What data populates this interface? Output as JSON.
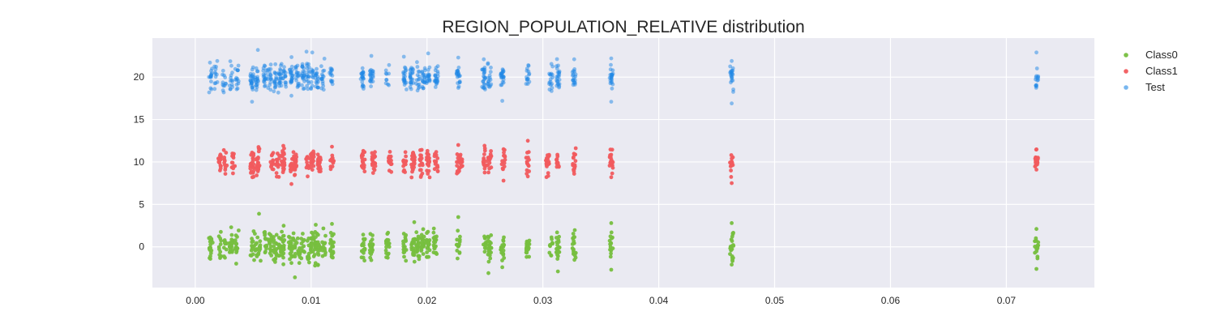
{
  "chart_data": {
    "type": "scatter",
    "title": "REGION_POPULATION_RELATIVE distribution",
    "xlabel": "",
    "ylabel": "",
    "xlim": [
      -0.0037,
      0.0776
    ],
    "ylim": [
      -4.8,
      24.6
    ],
    "x_ticks": [
      {
        "value": 0.0,
        "label": "0.00"
      },
      {
        "value": 0.01,
        "label": "0.01"
      },
      {
        "value": 0.02,
        "label": "0.02"
      },
      {
        "value": 0.03,
        "label": "0.03"
      },
      {
        "value": 0.04,
        "label": "0.04"
      },
      {
        "value": 0.05,
        "label": "0.05"
      },
      {
        "value": 0.06,
        "label": "0.06"
      },
      {
        "value": 0.07,
        "label": "0.07"
      }
    ],
    "y_ticks": [
      {
        "value": 0,
        "label": "0"
      },
      {
        "value": 5,
        "label": "5"
      },
      {
        "value": 10,
        "label": "10"
      },
      {
        "value": 15,
        "label": "15"
      },
      {
        "value": 20,
        "label": "20"
      }
    ],
    "grid": true,
    "legend_position": "outside-top-right",
    "background_color": "#eaeaf2",
    "series": [
      {
        "name": "Class0",
        "color": "#77bf3f",
        "opacity": 0.95,
        "y_center": 0,
        "y_spread": 1.2,
        "x_columns": [
          0.0013,
          0.0021,
          0.0026,
          0.0031,
          0.0036,
          0.0049,
          0.0052,
          0.0055,
          0.0061,
          0.0065,
          0.0069,
          0.0073,
          0.0076,
          0.0082,
          0.0085,
          0.0089,
          0.0093,
          0.0097,
          0.0101,
          0.0104,
          0.0107,
          0.0111,
          0.0118,
          0.0145,
          0.0152,
          0.0166,
          0.0181,
          0.0188,
          0.0192,
          0.0196,
          0.0201,
          0.0207,
          0.0227,
          0.025,
          0.0254,
          0.0265,
          0.0287,
          0.0307,
          0.0313,
          0.0327,
          0.0359,
          0.0463,
          0.0726
        ],
        "points": [
          [
            0.0055,
            3.9
          ],
          [
            0.0086,
            -3.6
          ],
          [
            0.0227,
            3.5
          ],
          [
            0.0253,
            -3.1
          ],
          [
            0.0313,
            -2.9
          ],
          [
            0.0359,
            2.8
          ],
          [
            0.0359,
            -2.7
          ],
          [
            0.0463,
            2.8
          ],
          [
            0.0463,
            -2.1
          ],
          [
            0.0726,
            2.1
          ],
          [
            0.0726,
            -2.6
          ],
          [
            0.0015,
            0.5
          ],
          [
            0.0013,
            -1.1
          ],
          [
            0.0031,
            2.3
          ],
          [
            0.0104,
            2.6
          ],
          [
            0.0118,
            2.7
          ],
          [
            0.0189,
            2.9
          ],
          [
            0.0265,
            -2.4
          ]
        ]
      },
      {
        "name": "Class1",
        "color": "#f15b5e",
        "opacity": 0.95,
        "y_center": 10,
        "y_spread": 1.0,
        "x_columns": [
          0.0021,
          0.0026,
          0.0033,
          0.0049,
          0.0054,
          0.0066,
          0.0071,
          0.0076,
          0.0083,
          0.0086,
          0.0097,
          0.0101,
          0.0107,
          0.0118,
          0.0145,
          0.0154,
          0.0168,
          0.0181,
          0.0188,
          0.0195,
          0.0201,
          0.0208,
          0.0227,
          0.0229,
          0.025,
          0.0254,
          0.0266,
          0.0287,
          0.0304,
          0.0313,
          0.0327,
          0.0359,
          0.0463,
          0.0726
        ],
        "points": [
          [
            0.0021,
            9.9
          ],
          [
            0.0026,
            8.6
          ],
          [
            0.0033,
            10.5
          ],
          [
            0.0049,
            11.1
          ],
          [
            0.0054,
            8.9
          ],
          [
            0.0066,
            9.6
          ],
          [
            0.0071,
            11.0
          ],
          [
            0.0076,
            11.9
          ],
          [
            0.0083,
            7.4
          ],
          [
            0.0086,
            8.5
          ],
          [
            0.0097,
            8.3
          ],
          [
            0.0101,
            10.7
          ],
          [
            0.0107,
            8.9
          ],
          [
            0.0118,
            11.8
          ],
          [
            0.0145,
            11.3
          ],
          [
            0.0154,
            9.2
          ],
          [
            0.0168,
            11.2
          ],
          [
            0.0181,
            8.8
          ],
          [
            0.0188,
            11.1
          ],
          [
            0.0195,
            8.4
          ],
          [
            0.0208,
            10.8
          ],
          [
            0.0227,
            12.0
          ],
          [
            0.0227,
            8.8
          ],
          [
            0.025,
            11.6
          ],
          [
            0.0254,
            9.9
          ],
          [
            0.0266,
            7.8
          ],
          [
            0.0266,
            11.5
          ],
          [
            0.0287,
            12.5
          ],
          [
            0.0287,
            8.3
          ],
          [
            0.0304,
            10.8
          ],
          [
            0.0313,
            9.9
          ],
          [
            0.0327,
            8.6
          ],
          [
            0.0359,
            10.3
          ],
          [
            0.0359,
            8.2
          ],
          [
            0.0463,
            10.4
          ],
          [
            0.0463,
            7.5
          ],
          [
            0.0726,
            10.5
          ],
          [
            0.0726,
            9.1
          ]
        ]
      },
      {
        "name": "Test",
        "color": "#1f87e5",
        "opacity": 0.5,
        "y_center": 20,
        "y_spread": 1.1,
        "x_columns": [
          0.0013,
          0.0018,
          0.0025,
          0.0031,
          0.0036,
          0.0049,
          0.0053,
          0.006,
          0.0064,
          0.0069,
          0.0073,
          0.0077,
          0.0083,
          0.0088,
          0.0093,
          0.0097,
          0.0101,
          0.0105,
          0.011,
          0.0117,
          0.0144,
          0.0152,
          0.0166,
          0.0181,
          0.0187,
          0.0192,
          0.0197,
          0.0201,
          0.0208,
          0.0227,
          0.0249,
          0.0254,
          0.0265,
          0.0287,
          0.0307,
          0.0313,
          0.0327,
          0.0359,
          0.0463,
          0.0726
        ],
        "points": [
          [
            0.0054,
            23.2
          ],
          [
            0.0096,
            23.0
          ],
          [
            0.0101,
            22.9
          ],
          [
            0.0201,
            22.8
          ],
          [
            0.0152,
            22.5
          ],
          [
            0.018,
            22.4
          ],
          [
            0.0227,
            22.3
          ],
          [
            0.0359,
            22.2
          ],
          [
            0.0463,
            21.9
          ],
          [
            0.0726,
            22.9
          ],
          [
            0.0726,
            18.9
          ],
          [
            0.0049,
            17.1
          ],
          [
            0.0265,
            17.2
          ],
          [
            0.0359,
            17.1
          ],
          [
            0.0463,
            16.9
          ],
          [
            0.0249,
            22.1
          ],
          [
            0.0327,
            22.1
          ],
          [
            0.0013,
            20.0
          ],
          [
            0.0019,
            21.9
          ],
          [
            0.0083,
            17.8
          ]
        ]
      }
    ]
  }
}
